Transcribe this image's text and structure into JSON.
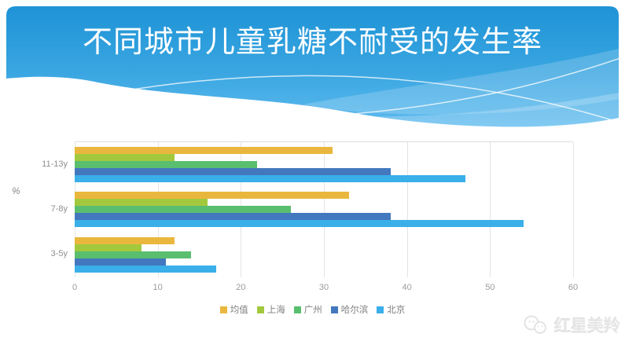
{
  "slide": {
    "title": "不同城市儿童乳糖不耐受的发生率",
    "watermark_text": "红星美羚",
    "header_colors": {
      "top": "#1e93d6",
      "mid": "#3aa6e1",
      "bottom": "#5fbbef"
    }
  },
  "chart_data": {
    "type": "bar",
    "orientation": "horizontal",
    "title": "不同城市儿童乳糖不耐受的发生率",
    "categories": [
      "11-13y",
      "7-8y",
      "3-5y"
    ],
    "series": [
      {
        "name": "均值",
        "color": "#eab73e",
        "values": [
          31,
          33,
          12
        ]
      },
      {
        "name": "上海",
        "color": "#a2c93d",
        "values": [
          12,
          16,
          8
        ]
      },
      {
        "name": "广州",
        "color": "#5abe6f",
        "values": [
          22,
          26,
          14
        ]
      },
      {
        "name": "哈尔滨",
        "color": "#4378be",
        "values": [
          38,
          38,
          11
        ]
      },
      {
        "name": "北京",
        "color": "#3aafe9",
        "values": [
          47,
          54,
          17
        ]
      }
    ],
    "x_ticks": [
      0,
      10,
      20,
      30,
      40,
      50,
      60
    ],
    "xlim": [
      0,
      60
    ],
    "xlabel": "",
    "ylabel": "%",
    "grid": true,
    "legend_position": "bottom"
  }
}
